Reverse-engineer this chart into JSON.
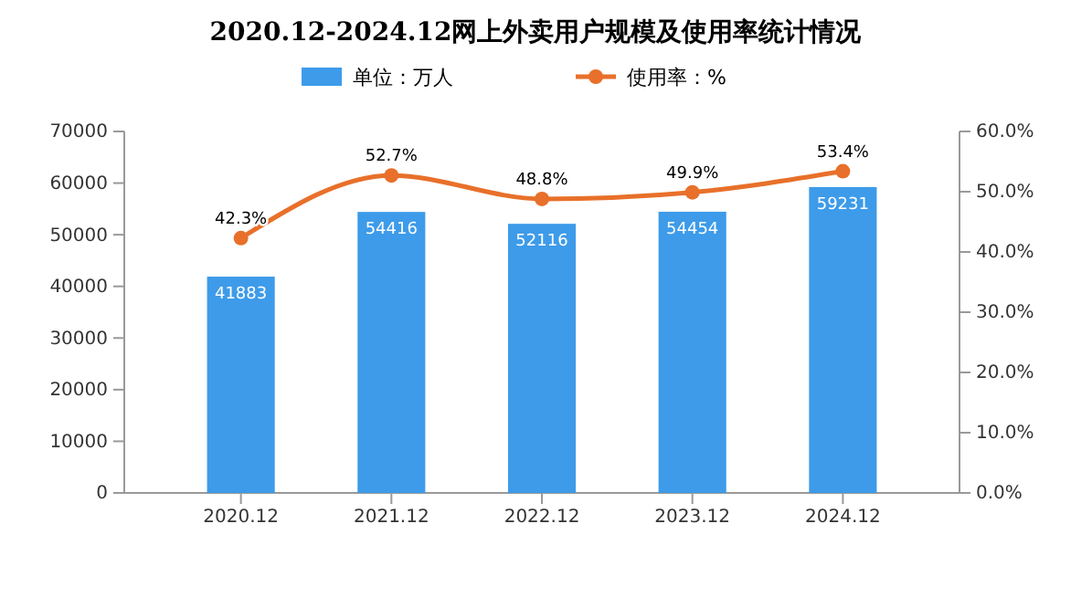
{
  "chart_data": {
    "type": "bar",
    "title": "2020.12-2024.12网上外卖用户规模及使用率统计情况",
    "categories": [
      "2020.12",
      "2021.12",
      "2022.12",
      "2023.12",
      "2024.12"
    ],
    "series": [
      {
        "name": "单位：万人",
        "color": "#3d9be9",
        "values": [
          41883,
          54416,
          52116,
          54454,
          59231
        ],
        "value_labels": [
          "41883",
          "54416",
          "52116",
          "54454",
          "59231"
        ]
      },
      {
        "name": "使用率：%",
        "type": "line",
        "axis": "y2",
        "color": "#e8702a",
        "values": [
          42.3,
          52.7,
          48.8,
          49.9,
          53.4
        ],
        "value_labels": [
          "42.3%",
          "52.7%",
          "48.8%",
          "49.9%",
          "53.4%"
        ]
      }
    ],
    "ylim": [
      0,
      70000
    ],
    "yticks": [
      0,
      10000,
      20000,
      30000,
      40000,
      50000,
      60000,
      70000
    ],
    "y2lim": [
      0,
      60
    ],
    "y2ticks": [
      {
        "value": 0,
        "label": "0.0%"
      },
      {
        "value": 10,
        "label": "10.0%"
      },
      {
        "value": 20,
        "label": "20.0%"
      },
      {
        "value": 30,
        "label": "30.0%"
      },
      {
        "value": 40,
        "label": "40.0%"
      },
      {
        "value": 50,
        "label": "50.0%"
      },
      {
        "value": 60,
        "label": "60.0%"
      }
    ],
    "legend": "top",
    "marker": "circle",
    "line_style": "solid"
  }
}
